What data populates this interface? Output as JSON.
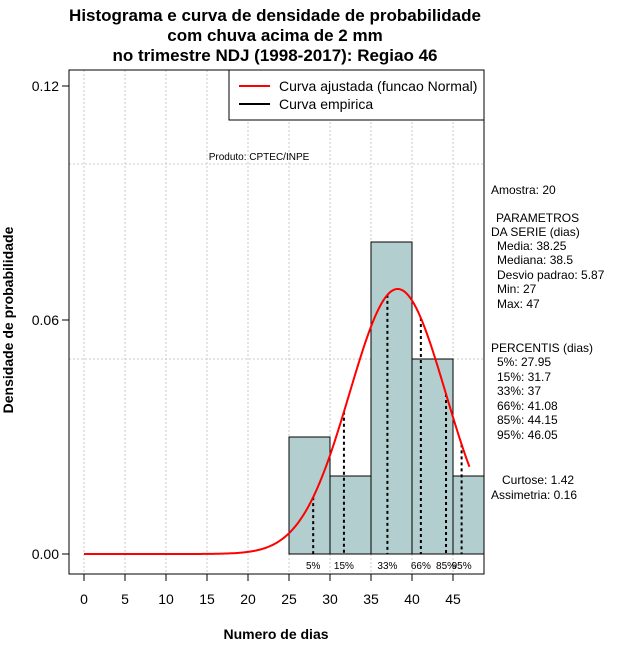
{
  "chart_data": {
    "type": "bar",
    "title_lines": [
      "Histograma e curva de densidade de probabilidade",
      "com chuva acima de 2 mm",
      "no trimestre NDJ (1998-2017): Regiao 46"
    ],
    "xlabel": "Numero de dias",
    "ylabel": "Densidade de probabilidade",
    "xlim": [
      -3.5,
      48.7
    ],
    "ylim": [
      -0.005,
      0.124
    ],
    "x_ticks": [
      0,
      5,
      10,
      15,
      20,
      25,
      30,
      35,
      40,
      45
    ],
    "y_ticks": [
      0.0,
      0.06,
      0.12
    ],
    "y_tick_labels": [
      "0.00",
      "0.06",
      "0.12"
    ],
    "grid_x": [
      0,
      5,
      10,
      15,
      20,
      25,
      30,
      35,
      40,
      45
    ],
    "grid_y": [
      0.1,
      0.05
    ],
    "bar_color": "#b3cece",
    "bins": [
      {
        "from": 25,
        "to": 30,
        "density": 0.03
      },
      {
        "from": 30,
        "to": 35,
        "density": 0.02
      },
      {
        "from": 35,
        "to": 40,
        "density": 0.08
      },
      {
        "from": 40,
        "to": 45,
        "density": 0.05
      },
      {
        "from": 45,
        "to": 49,
        "density": 0.02
      }
    ],
    "normal_curve": {
      "name": "Curva ajustada (funcao Normal)",
      "color": "#ff0000",
      "mean": 38.25,
      "sd": 5.87,
      "x_from": 0,
      "x_to": 47
    },
    "empirical_curve": {
      "name": "Curva empirica",
      "color": "#000000"
    },
    "percentiles": [
      {
        "label": "5%",
        "value": 27.95
      },
      {
        "label": "15%",
        "value": 31.7
      },
      {
        "label": "33%",
        "value": 37
      },
      {
        "label": "66%",
        "value": 41.08
      },
      {
        "label": "85%",
        "value": 44.15
      },
      {
        "label": "95%",
        "value": 46.05
      }
    ],
    "annotation": "Produto: CPTEC/INPE"
  },
  "stats_lines": [
    "Amostra: 20",
    "PARAMETROS",
    "DA SERIE (dias)",
    "Media: 38.25",
    "Mediana: 38.5",
    "Desvio padrao: 5.87",
    "Min: 27",
    "Max: 47",
    "PERCENTIS (dias)",
    "5%: 27.95",
    "15%: 31.7",
    "33%: 37",
    "66%: 41.08",
    "85%: 44.15",
    "95%: 46.05",
    "Curtose: 1.42",
    "Assimetria: 0.16"
  ]
}
